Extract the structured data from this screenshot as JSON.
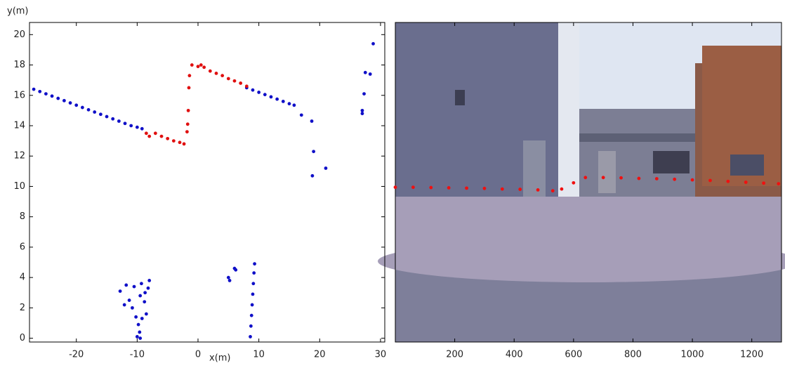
{
  "chart_data": [
    {
      "type": "scatter",
      "x_label": "x(m)",
      "y_label": "y(m)",
      "xlim": [
        -27.7,
        30.7
      ],
      "ylim": [
        -0.25,
        20.8
      ],
      "xticks": [
        -20,
        -10,
        0,
        10,
        20,
        30
      ],
      "yticks": [
        0,
        2,
        4,
        6,
        8,
        10,
        12,
        14,
        16,
        18,
        20
      ],
      "series": [
        {
          "color": "#1010c8",
          "x": [
            -27,
            -26,
            -25,
            -24,
            -23,
            -22,
            -21,
            -20,
            -19,
            -18,
            -17,
            -16,
            -15,
            -14,
            -13,
            -12,
            -11,
            -10,
            -9.2,
            8,
            9,
            10,
            11,
            12,
            13,
            14,
            15,
            15.8,
            17,
            18.7,
            19,
            18.8,
            21,
            27,
            27,
            27.3,
            27.5,
            28.3,
            28.8,
            -12.8,
            -11.8,
            -11.3,
            -12.1,
            -10.5,
            -10.8,
            -10.2,
            -9.8,
            -9.6,
            -9.5,
            -9.2,
            -8.8,
            -8.5,
            -8.2,
            -8.0,
            -8.7,
            -9.5,
            -10,
            -9.3,
            5,
            5.2,
            6,
            6.2,
            9.3,
            9.2,
            9.1,
            9.0,
            8.9,
            8.8,
            8.7,
            8.6
          ],
          "values": [
            16.4,
            16.25,
            16.1,
            15.95,
            15.8,
            15.65,
            15.5,
            15.35,
            15.2,
            15.05,
            14.9,
            14.75,
            14.6,
            14.45,
            14.3,
            14.15,
            14.0,
            13.9,
            13.8,
            16.5,
            16.35,
            16.2,
            16.05,
            15.9,
            15.75,
            15.6,
            15.45,
            15.35,
            14.7,
            14.3,
            12.3,
            10.7,
            11.2,
            15,
            14.8,
            16.1,
            17.5,
            17.4,
            19.4,
            3.1,
            3.5,
            2.5,
            2.2,
            3.4,
            2.0,
            1.4,
            0.9,
            0.4,
            0,
            1.3,
            2.4,
            1.6,
            3.3,
            3.8,
            3.0,
            2.8,
            0.1,
            3.6,
            4.0,
            3.8,
            4.6,
            4.5,
            4.9,
            4.3,
            3.6,
            2.9,
            2.2,
            1.5,
            0.8,
            0.1
          ]
        },
        {
          "color": "#e01010",
          "x": [
            -8.5,
            -8,
            -7,
            -6,
            -5,
            -4,
            -3,
            -2.3,
            -1.8,
            -1.7,
            -1.6,
            -1.5,
            -1.4,
            -1,
            0,
            0.5,
            1,
            2,
            3,
            4,
            5,
            6,
            7,
            8
          ],
          "values": [
            13.5,
            13.3,
            13.5,
            13.3,
            13.15,
            13,
            12.9,
            12.8,
            13.6,
            14.1,
            15,
            16.5,
            17.3,
            18,
            17.9,
            18,
            17.85,
            17.6,
            17.45,
            17.3,
            17.1,
            16.95,
            16.8,
            16.6
          ]
        }
      ]
    },
    {
      "type": "scatter",
      "xlim": [
        0,
        1300
      ],
      "ylim": [
        1086,
        0
      ],
      "xticks": [
        200,
        400,
        600,
        800,
        1000,
        1200
      ],
      "series": [
        {
          "color": "#f01010",
          "x": [
            0,
            60,
            120,
            180,
            240,
            300,
            360,
            420,
            480,
            530,
            560,
            600,
            640,
            700,
            760,
            820,
            880,
            940,
            1000,
            1060,
            1120,
            1180,
            1240,
            1290
          ],
          "values": [
            560,
            560,
            561,
            562,
            563,
            564,
            566,
            567,
            569,
            572,
            566,
            545,
            527,
            527,
            528,
            530,
            531,
            533,
            535,
            537,
            540,
            543,
            546,
            548
          ]
        }
      ]
    }
  ]
}
